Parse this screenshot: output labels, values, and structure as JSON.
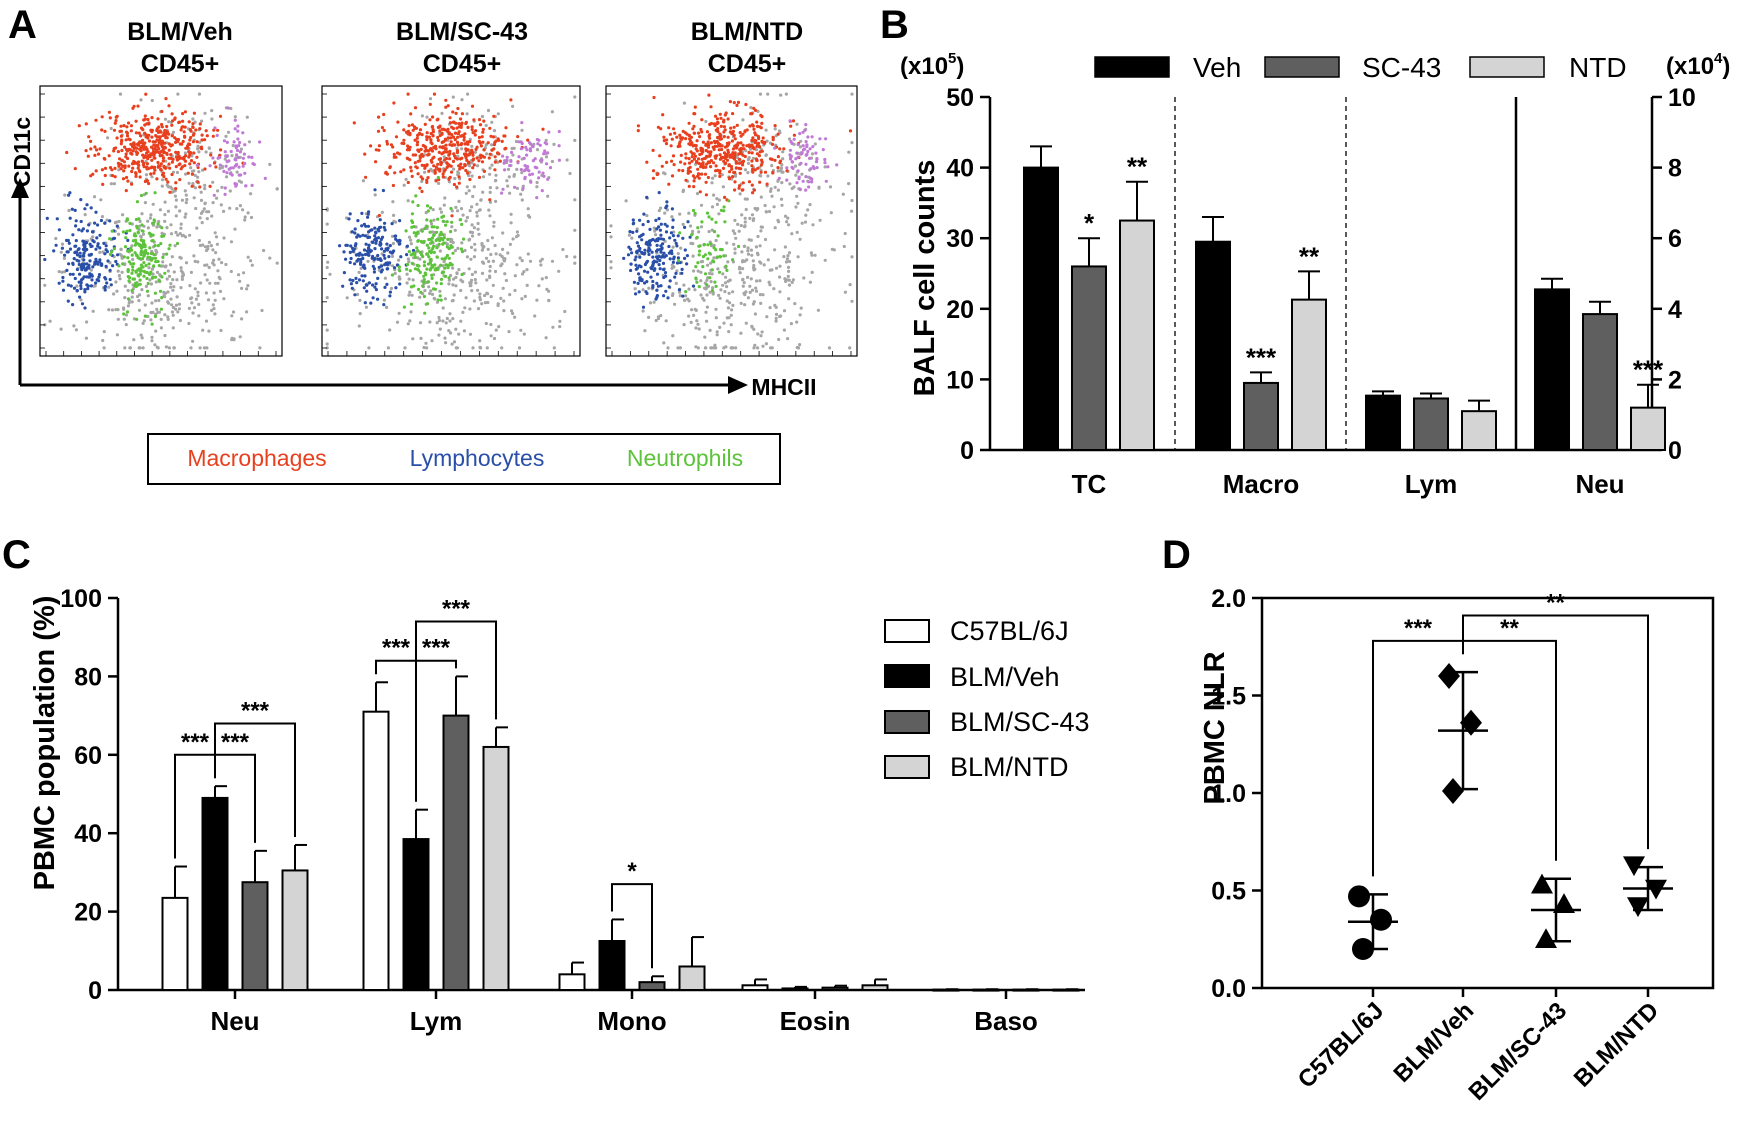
{
  "figure": {
    "letters": [
      "A",
      "B",
      "C",
      "D"
    ]
  },
  "colors": {
    "macrophages": "#e8401f",
    "lymphocytes": "#2a4fa8",
    "neutrophils": "#5cc33a",
    "other": "#a6a6a6",
    "eosin": "#c07ad6",
    "veh": "#000000",
    "sc43": "#5f5f5f",
    "ntd": "#d4d4d4",
    "c57": "#ffffff"
  },
  "panel_a": {
    "plots": [
      {
        "title_line1": "BLM/Veh",
        "title_line2": "CD45+",
        "neutrophil_density": 1.0,
        "macrophage_density": 1.0
      },
      {
        "title_line1": "BLM/SC-43",
        "title_line2": "CD45+",
        "neutrophil_density": 1.0,
        "macrophage_density": 0.9
      },
      {
        "title_line1": "BLM/NTD",
        "title_line2": "CD45+",
        "neutrophil_density": 0.35,
        "macrophage_density": 1.0
      }
    ],
    "y_axis_label": "CD11c",
    "x_axis_label": "MHCII",
    "legend": [
      "Macrophages",
      "Lymphocytes",
      "Neutrophils"
    ]
  },
  "chart_data": [
    {
      "panel": "B",
      "type": "bar",
      "categories": [
        "TC",
        "Macro",
        "Lym",
        "Neu"
      ],
      "series": [
        {
          "name": "Veh",
          "values": [
            40,
            29.5,
            7.7,
            4.55
          ],
          "errors": [
            3,
            3.5,
            0.6,
            0.3
          ]
        },
        {
          "name": "SC-43",
          "values": [
            26,
            9.5,
            7.3,
            3.85
          ],
          "errors": [
            4,
            1.5,
            0.7,
            0.35
          ]
        },
        {
          "name": "NTD",
          "values": [
            32.5,
            21.3,
            5.5,
            1.2
          ],
          "errors": [
            5.5,
            4,
            1.5,
            0.65
          ]
        }
      ],
      "significance": [
        [
          "",
          "*",
          "**"
        ],
        [
          "",
          "***",
          "**"
        ],
        [
          "",
          "",
          ""
        ],
        [
          "",
          "",
          "***"
        ]
      ],
      "ylabel": "BALF cell counts",
      "ylim": [
        0,
        50
      ],
      "yticks": [
        "0",
        "10",
        "20",
        "30",
        "40",
        "50"
      ],
      "y2lim": [
        0,
        10
      ],
      "y2ticks": [
        "0",
        "2",
        "4",
        "6",
        "8",
        "10"
      ],
      "y2_applies_to": "Neu",
      "left_unit": "(x10",
      "left_unit_exp": "5",
      "right_unit": "(x10",
      "right_unit_exp": "4",
      "unit_close": ")",
      "legend": "top"
    },
    {
      "panel": "C",
      "type": "bar",
      "categories": [
        "Neu",
        "Lym",
        "Mono",
        "Eosin",
        "Baso"
      ],
      "series": [
        {
          "name": "C57BL/6J",
          "values": [
            23.5,
            71,
            4,
            1.2,
            0.1
          ],
          "errors": [
            8,
            7.5,
            3,
            1.5,
            0.1
          ]
        },
        {
          "name": "BLM/Veh",
          "values": [
            49,
            38.5,
            12.5,
            0.4,
            0.1
          ],
          "errors": [
            3,
            7.5,
            5.5,
            0.4,
            0.1
          ]
        },
        {
          "name": "BLM/SC-43",
          "values": [
            27.5,
            70,
            2,
            0.6,
            0.1
          ],
          "errors": [
            8,
            10,
            1.5,
            0.5,
            0.1
          ]
        },
        {
          "name": "BLM/NTD",
          "values": [
            30.5,
            62,
            6,
            1.2,
            0.1
          ],
          "errors": [
            6.5,
            5,
            7.5,
            1.5,
            0.1
          ]
        }
      ],
      "comparisons": [
        {
          "cat": 0,
          "from": 0,
          "to": 1,
          "y": 60,
          "label": "***"
        },
        {
          "cat": 0,
          "from": 1,
          "to": 2,
          "y": 60,
          "label": "***"
        },
        {
          "cat": 0,
          "from": 1,
          "to": 3,
          "y": 68,
          "label": "***"
        },
        {
          "cat": 1,
          "from": 0,
          "to": 1,
          "y": 84,
          "label": "***"
        },
        {
          "cat": 1,
          "from": 1,
          "to": 2,
          "y": 84,
          "label": "***"
        },
        {
          "cat": 1,
          "from": 1,
          "to": 3,
          "y": 94,
          "label": "***"
        },
        {
          "cat": 2,
          "from": 1,
          "to": 2,
          "y": 27,
          "label": "*"
        }
      ],
      "ylabel": "PBMC population (%)",
      "ylim": [
        0,
        100
      ],
      "yticks": [
        "0",
        "20",
        "40",
        "60",
        "80",
        "100"
      ],
      "legend": "top-right"
    },
    {
      "panel": "D",
      "type": "scatter",
      "categories": [
        "C57BL/6J",
        "BLM/Veh",
        "BLM/SC-43",
        "BLM/NTD"
      ],
      "markers": [
        "circle",
        "diamond",
        "triangle-up",
        "triangle-down"
      ],
      "points": [
        [
          0.47,
          0.35,
          0.2
        ],
        [
          1.6,
          1.36,
          1.01
        ],
        [
          0.53,
          0.43,
          0.25
        ],
        [
          0.63,
          0.51,
          0.42
        ]
      ],
      "means": [
        0.34,
        1.32,
        0.4,
        0.51
      ],
      "sd": [
        0.14,
        0.3,
        0.16,
        0.11
      ],
      "comparisons": [
        {
          "from": 0,
          "to": 1,
          "y": 1.78,
          "label": "***"
        },
        {
          "from": 1,
          "to": 2,
          "y": 1.78,
          "label": "**"
        },
        {
          "from": 1,
          "to": 3,
          "y": 1.91,
          "label": "**"
        }
      ],
      "ylabel": "PBMC NLR",
      "ylim": [
        0,
        2.0
      ],
      "yticks": [
        "0.0",
        "0.5",
        "1.0",
        "1.5",
        "2.0"
      ]
    }
  ]
}
